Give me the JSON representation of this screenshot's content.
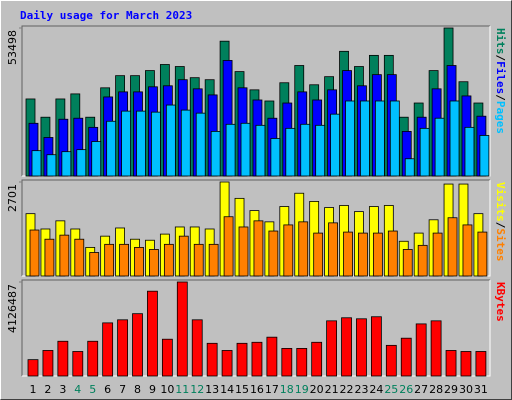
{
  "chart_data": [
    {
      "type": "bar",
      "title": "Daily usage for March 2023",
      "separator": "/",
      "ylim": [
        0,
        53498
      ],
      "yticks": [
        53498
      ],
      "series": [
        {
          "name": "Hits",
          "color": "#00805c",
          "values": [
            27848,
            21251,
            27848,
            29679,
            21251,
            31877,
            36274,
            36274,
            38106,
            40305,
            39572,
            35541,
            34809,
            48731,
            37740,
            31144,
            27114,
            33710,
            39938,
            32977,
            35908,
            45068,
            39572,
            43603,
            43603,
            21251,
            26381,
            38106,
            53498,
            34076,
            26381
          ]
        },
        {
          "name": "Files",
          "color": "#0000ff",
          "values": [
            19053,
            13923,
            20518,
            20885,
            17587,
            28579,
            30411,
            30411,
            32243,
            32610,
            34808,
            31510,
            29312,
            41770,
            31877,
            27480,
            20885,
            26381,
            30411,
            27480,
            31144,
            38106,
            32610,
            36640,
            36640,
            16122,
            21251,
            31510,
            39938,
            28946,
            21618
          ]
        },
        {
          "name": "Pages",
          "color": "#00c0ff",
          "values": [
            9160,
            7694,
            8794,
            9526,
            12458,
            19786,
            23450,
            23450,
            23083,
            25648,
            23816,
            22717,
            16122,
            18686,
            19053,
            18320,
            13557,
            17221,
            18686,
            18320,
            22350,
            27114,
            27114,
            27114,
            27114,
            6229,
            17221,
            20885,
            27114,
            17587,
            14656
          ]
        }
      ]
    },
    {
      "type": "bar",
      "separator": "/",
      "ylim": [
        0,
        2701
      ],
      "yticks": [
        2701
      ],
      "series": [
        {
          "name": "Visits",
          "color": "#ffff00",
          "values": [
            1791,
            1351,
            1585,
            1351,
            822,
            1145,
            1380,
            1057,
            1028,
            1204,
            1409,
            1409,
            1351,
            2701,
            2231,
            1879,
            1556,
            1996,
            2378,
            2143,
            1967,
            2026,
            1850,
            1996,
            2026,
            998,
            1233,
            1615,
            2642,
            2642,
            1791
          ]
        },
        {
          "name": "Sites",
          "color": "#ff8000",
          "values": [
            1321,
            1057,
            1174,
            1057,
            675,
            910,
            910,
            822,
            763,
            910,
            1145,
            910,
            910,
            1703,
            1409,
            1585,
            1292,
            1468,
            1556,
            1233,
            1527,
            1262,
            1233,
            1233,
            1292,
            763,
            881,
            1233,
            1674,
            1468,
            1262
          ]
        }
      ]
    },
    {
      "type": "bar",
      "ylim": [
        0,
        4126487
      ],
      "yticks": [
        4126487
      ],
      "categories": [
        "1",
        "2",
        "3",
        "4",
        "5",
        "6",
        "7",
        "8",
        "9",
        "10",
        "11",
        "12",
        "13",
        "14",
        "15",
        "16",
        "17",
        "18",
        "19",
        "20",
        "21",
        "22",
        "23",
        "24",
        "25",
        "26",
        "27",
        "28",
        "29",
        "30",
        "31"
      ],
      "label_colors": [
        "#000000",
        "#000000",
        "#000000",
        "#00805c",
        "#00805c",
        "#000000",
        "#000000",
        "#000000",
        "#000000",
        "#000000",
        "#00805c",
        "#00805c",
        "#000000",
        "#000000",
        "#000000",
        "#000000",
        "#000000",
        "#00805c",
        "#00805c",
        "#000000",
        "#000000",
        "#000000",
        "#000000",
        "#000000",
        "#00805c",
        "#00805c",
        "#000000",
        "#000000",
        "#000000",
        "#000000",
        "#000000"
      ],
      "series": [
        {
          "name": "KBytes",
          "color": "#ff0000",
          "values": [
            717648,
            1121325,
            1525002,
            1076472,
            1525002,
            2332356,
            2466915,
            2736033,
            3722799,
            1614708,
            4126487,
            2466915,
            1435296,
            1121325,
            1435296,
            1480149,
            1704414,
            1211031,
            1211031,
            1480149,
            2422062,
            2556621,
            2511768,
            2601474,
            1345590,
            1659561,
            2287503,
            2422062,
            1121325,
            1076472,
            1076472
          ]
        }
      ]
    }
  ]
}
